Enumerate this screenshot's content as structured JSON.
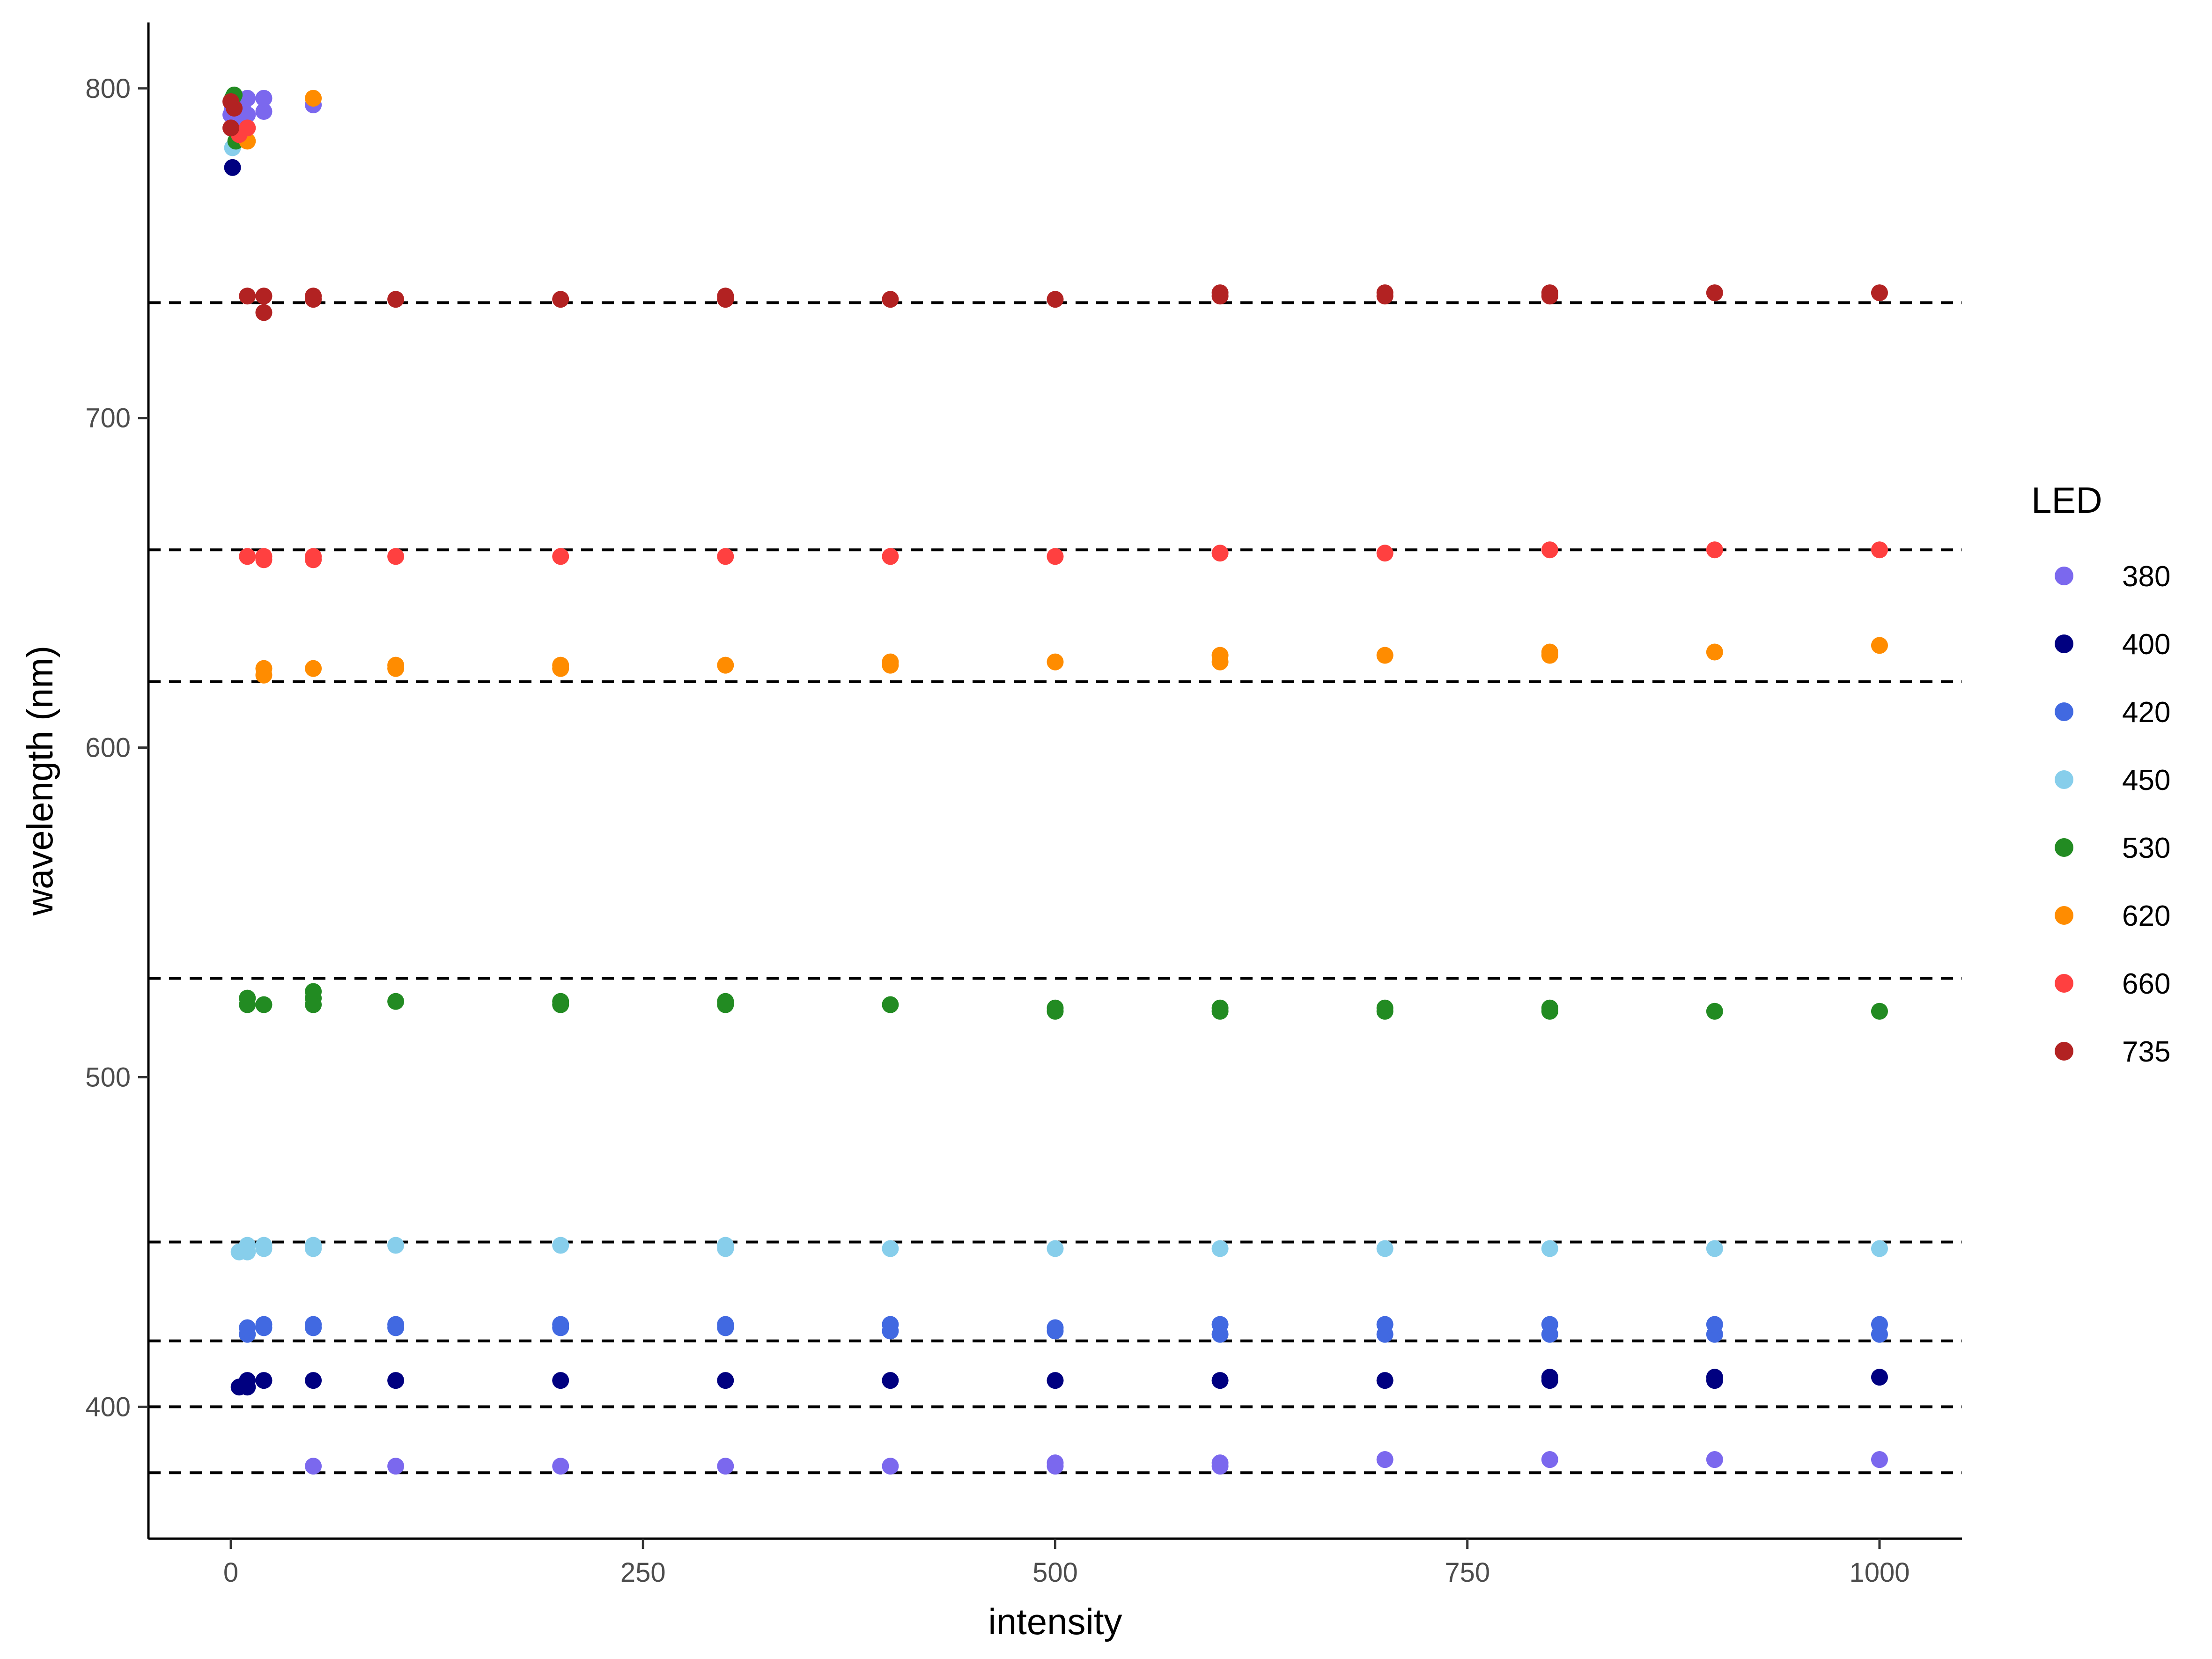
{
  "chart_data": {
    "type": "scatter",
    "xlabel": "intensity",
    "ylabel": "wavelength (nm)",
    "xlim": [
      -50,
      1050
    ],
    "ylim": [
      360,
      820
    ],
    "x_ticks": [
      0,
      250,
      500,
      750,
      1000
    ],
    "y_ticks": [
      400,
      500,
      600,
      700,
      800
    ],
    "x_tick_labels": [
      "0",
      "250",
      "500",
      "750",
      "1000"
    ],
    "y_tick_labels": [
      "400",
      "500",
      "600",
      "700",
      "800"
    ],
    "grid": false,
    "legend": {
      "title": "LED",
      "position": "right"
    },
    "reference_lines": {
      "style": "dashed",
      "color": "#000000",
      "y": [
        380,
        400,
        420,
        450,
        530,
        620,
        660,
        735
      ]
    },
    "series": [
      {
        "name": "380",
        "color": "#7B68EE",
        "points": [
          [
            0,
            792
          ],
          [
            1,
            794
          ],
          [
            2,
            796
          ],
          [
            3,
            795
          ],
          [
            5,
            790
          ],
          [
            5,
            794
          ],
          [
            8,
            796
          ],
          [
            10,
            792
          ],
          [
            10,
            797
          ],
          [
            20,
            793
          ],
          [
            20,
            797
          ],
          [
            50,
            382
          ],
          [
            50,
            795
          ],
          [
            100,
            382
          ],
          [
            200,
            382
          ],
          [
            300,
            382
          ],
          [
            400,
            382
          ],
          [
            500,
            382
          ],
          [
            500,
            383
          ],
          [
            600,
            382
          ],
          [
            600,
            383
          ],
          [
            700,
            384
          ],
          [
            800,
            384
          ],
          [
            900,
            384
          ],
          [
            1000,
            384
          ]
        ]
      },
      {
        "name": "400",
        "color": "#000080",
        "points": [
          [
            1,
            776
          ],
          [
            5,
            406
          ],
          [
            10,
            406
          ],
          [
            10,
            408
          ],
          [
            20,
            408
          ],
          [
            50,
            408
          ],
          [
            100,
            408
          ],
          [
            200,
            408
          ],
          [
            300,
            408
          ],
          [
            400,
            408
          ],
          [
            500,
            408
          ],
          [
            600,
            408
          ],
          [
            700,
            408
          ],
          [
            800,
            408
          ],
          [
            800,
            409
          ],
          [
            900,
            408
          ],
          [
            900,
            409
          ],
          [
            1000,
            409
          ]
        ]
      },
      {
        "name": "420",
        "color": "#4169E1",
        "points": [
          [
            10,
            422
          ],
          [
            10,
            424
          ],
          [
            20,
            424
          ],
          [
            20,
            425
          ],
          [
            50,
            424
          ],
          [
            50,
            425
          ],
          [
            100,
            424
          ],
          [
            100,
            425
          ],
          [
            200,
            424
          ],
          [
            200,
            425
          ],
          [
            300,
            424
          ],
          [
            300,
            425
          ],
          [
            400,
            423
          ],
          [
            400,
            425
          ],
          [
            500,
            423
          ],
          [
            500,
            424
          ],
          [
            600,
            422
          ],
          [
            600,
            425
          ],
          [
            700,
            422
          ],
          [
            700,
            425
          ],
          [
            800,
            422
          ],
          [
            800,
            425
          ],
          [
            900,
            422
          ],
          [
            900,
            425
          ],
          [
            1000,
            422
          ],
          [
            1000,
            425
          ]
        ]
      },
      {
        "name": "450",
        "color": "#87CEEB",
        "points": [
          [
            1,
            782
          ],
          [
            5,
            447
          ],
          [
            10,
            447
          ],
          [
            10,
            449
          ],
          [
            20,
            448
          ],
          [
            20,
            449
          ],
          [
            50,
            448
          ],
          [
            50,
            449
          ],
          [
            100,
            449
          ],
          [
            200,
            449
          ],
          [
            300,
            448
          ],
          [
            300,
            449
          ],
          [
            400,
            448
          ],
          [
            500,
            448
          ],
          [
            600,
            448
          ],
          [
            700,
            448
          ],
          [
            800,
            448
          ],
          [
            900,
            448
          ],
          [
            1000,
            448
          ]
        ]
      },
      {
        "name": "530",
        "color": "#228B22",
        "points": [
          [
            1,
            797
          ],
          [
            2,
            798
          ],
          [
            3,
            784
          ],
          [
            10,
            522
          ],
          [
            10,
            524
          ],
          [
            20,
            522
          ],
          [
            50,
            522
          ],
          [
            50,
            524
          ],
          [
            50,
            526
          ],
          [
            100,
            523
          ],
          [
            200,
            522
          ],
          [
            200,
            523
          ],
          [
            300,
            522
          ],
          [
            300,
            523
          ],
          [
            400,
            522
          ],
          [
            500,
            520
          ],
          [
            500,
            521
          ],
          [
            600,
            520
          ],
          [
            600,
            521
          ],
          [
            700,
            520
          ],
          [
            700,
            521
          ],
          [
            800,
            520
          ],
          [
            800,
            521
          ],
          [
            900,
            520
          ],
          [
            1000,
            520
          ]
        ]
      },
      {
        "name": "620",
        "color": "#FF8C00",
        "points": [
          [
            10,
            784
          ],
          [
            20,
            622
          ],
          [
            20,
            624
          ],
          [
            50,
            624
          ],
          [
            50,
            797
          ],
          [
            100,
            624
          ],
          [
            100,
            625
          ],
          [
            200,
            624
          ],
          [
            200,
            625
          ],
          [
            300,
            625
          ],
          [
            400,
            625
          ],
          [
            400,
            626
          ],
          [
            500,
            626
          ],
          [
            600,
            626
          ],
          [
            600,
            628
          ],
          [
            700,
            628
          ],
          [
            800,
            628
          ],
          [
            800,
            629
          ],
          [
            900,
            629
          ],
          [
            1000,
            631
          ]
        ]
      },
      {
        "name": "660",
        "color": "#FF4040",
        "points": [
          [
            5,
            786
          ],
          [
            10,
            788
          ],
          [
            10,
            658
          ],
          [
            20,
            657
          ],
          [
            20,
            658
          ],
          [
            50,
            657
          ],
          [
            50,
            658
          ],
          [
            100,
            658
          ],
          [
            200,
            658
          ],
          [
            300,
            658
          ],
          [
            400,
            658
          ],
          [
            500,
            658
          ],
          [
            600,
            659
          ],
          [
            700,
            659
          ],
          [
            800,
            660
          ],
          [
            900,
            660
          ],
          [
            1000,
            660
          ]
        ]
      },
      {
        "name": "735",
        "color": "#B22222",
        "points": [
          [
            0,
            788
          ],
          [
            0,
            796
          ],
          [
            2,
            794
          ],
          [
            10,
            737
          ],
          [
            20,
            732
          ],
          [
            20,
            737
          ],
          [
            50,
            736
          ],
          [
            50,
            737
          ],
          [
            100,
            736
          ],
          [
            200,
            736
          ],
          [
            300,
            736
          ],
          [
            300,
            737
          ],
          [
            400,
            736
          ],
          [
            500,
            736
          ],
          [
            600,
            737
          ],
          [
            600,
            738
          ],
          [
            700,
            737
          ],
          [
            700,
            738
          ],
          [
            800,
            737
          ],
          [
            800,
            738
          ],
          [
            900,
            738
          ],
          [
            1000,
            738
          ]
        ]
      }
    ]
  }
}
